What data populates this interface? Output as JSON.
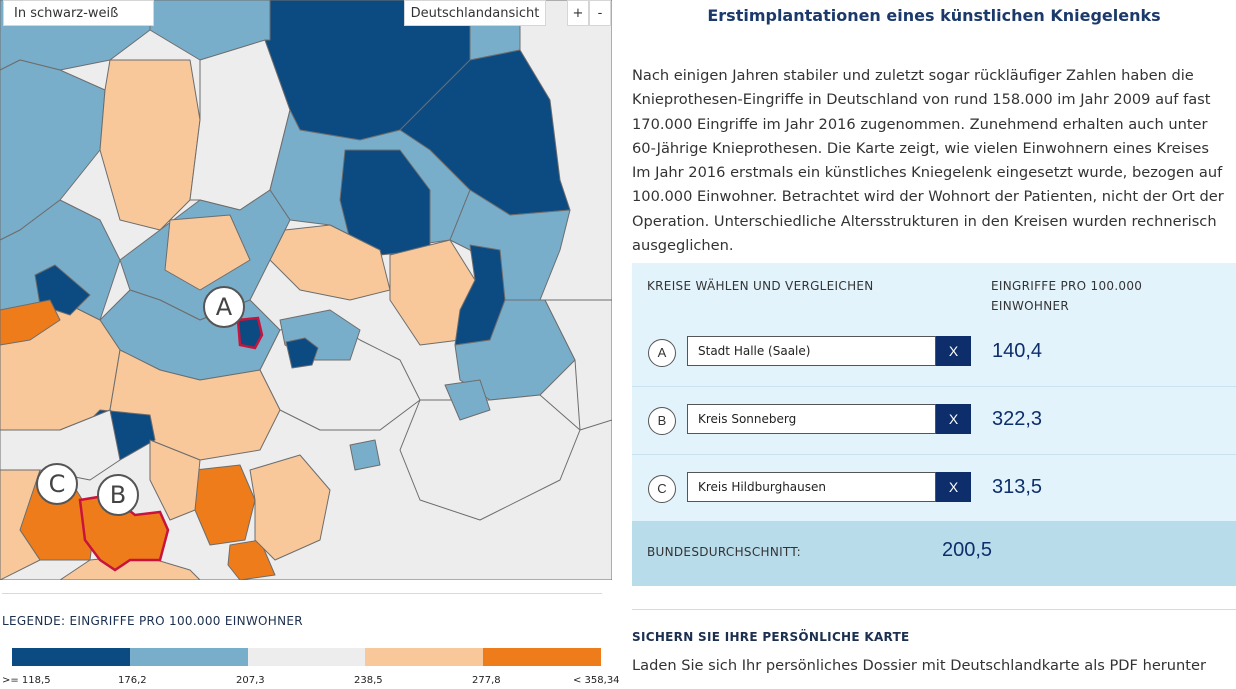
{
  "map": {
    "bw_toggle_label": "In schwarz-weiß",
    "germany_view_label": "Deutschlandansicht",
    "zoom_in_label": "+",
    "zoom_out_label": "-",
    "markers": [
      {
        "letter": "A"
      },
      {
        "letter": "B"
      },
      {
        "letter": "C"
      }
    ],
    "colors": {
      "class1": "#0c4a82",
      "class2": "#79aeca",
      "class3": "#ededed",
      "class4": "#f8c89b",
      "class5": "#ee7c1b",
      "selected_outline": "#c8143c",
      "border": "#6d6d6d"
    }
  },
  "legend": {
    "title": "LEGENDE: EINGRIFFE PRO 100.000 EINWOHNER",
    "swatches": [
      "#0c4a82",
      "#79aeca",
      "#ededed",
      "#f8c89b",
      "#ee7c1b"
    ],
    "ticks": [
      ">= 118,5",
      "176,2",
      "207,3",
      "238,5",
      "277,8",
      "< 358,34"
    ]
  },
  "article": {
    "title": "Erstimplantationen eines künstlichen Kniegelenks",
    "intro": "Nach einigen Jahren stabiler und zuletzt sogar rückläufiger Zahlen haben die Knieprothesen-Eingriffe in Deutschland von rund 158.000 im Jahr 2009 auf fast 170.000 Eingriffe im Jahr 2016 zugenommen. Zunehmend erhalten auch unter 60-Jährige Knieprothesen. Die Karte zeigt, wie vielen Einwohnern eines Kreises Im Jahr 2016 erstmals ein künstliches Kniegelenk eingesetzt wurde, bezogen auf 100.000 Einwohner. Betrachtet wird der Wohnort der Patienten, nicht der Ort der Operation. Unterschiedliche Altersstrukturen in den Kreisen wurden rechnerisch ausgeglichen."
  },
  "compare": {
    "heading": "KREISE WÄHLEN UND VERGLEICHEN",
    "value_heading": "EINGRIFFE PRO 100.000 EINWOHNER",
    "clear_label": "X",
    "rows": [
      {
        "letter": "A",
        "district": "Stadt Halle (Saale)",
        "value": "140,4"
      },
      {
        "letter": "B",
        "district": "Kreis Sonneberg",
        "value": "322,3"
      },
      {
        "letter": "C",
        "district": "Kreis Hildburghausen",
        "value": "313,5"
      }
    ],
    "average_label": "BUNDESDURCHSCHNITT:",
    "average_value": "200,5"
  },
  "dossier": {
    "heading": "SICHERN SIE IHRE PERSÖNLICHE KARTE",
    "text": "Laden Sie sich Ihr persönliches Dossier mit Deutschlandkarte als PDF herunter"
  }
}
